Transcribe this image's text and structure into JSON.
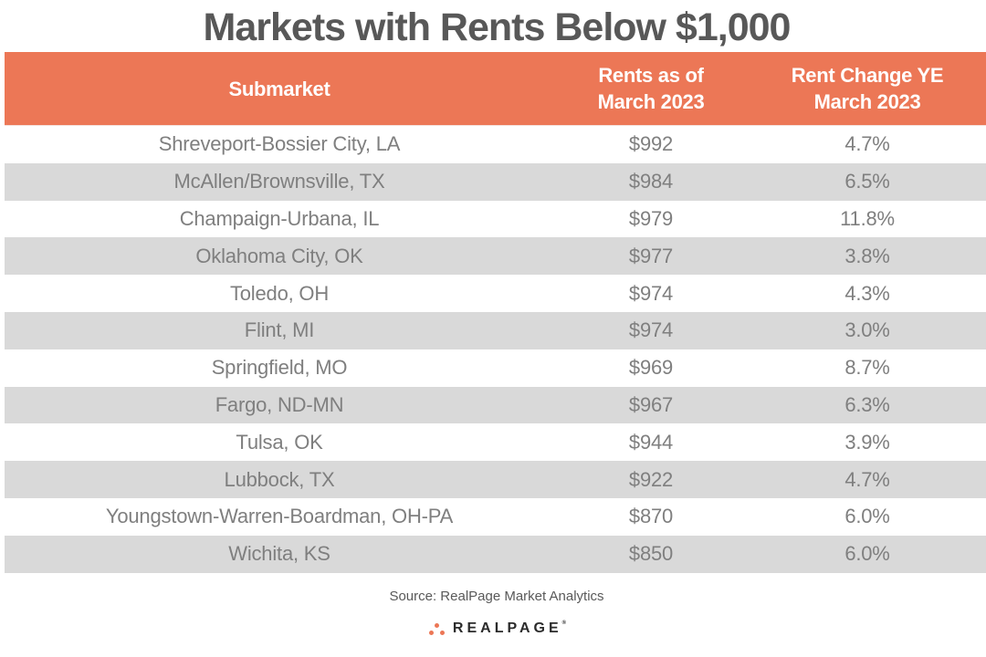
{
  "title": "Markets with Rents Below $1,000",
  "table": {
    "headers": {
      "submarket": "Submarket",
      "rent_line1": "Rents as of",
      "rent_line2": "March 2023",
      "change_line1": "Rent Change YE",
      "change_line2": "March 2023"
    },
    "rows": [
      {
        "submarket": "Shreveport-Bossier City, LA",
        "rent": "$992",
        "change": "4.7%"
      },
      {
        "submarket": "McAllen/Brownsville, TX",
        "rent": "$984",
        "change": "6.5%"
      },
      {
        "submarket": "Champaign-Urbana, IL",
        "rent": "$979",
        "change": "11.8%"
      },
      {
        "submarket": "Oklahoma City, OK",
        "rent": "$977",
        "change": "3.8%"
      },
      {
        "submarket": "Toledo, OH",
        "rent": "$974",
        "change": "4.3%"
      },
      {
        "submarket": "Flint, MI",
        "rent": "$974",
        "change": "3.0%"
      },
      {
        "submarket": "Springfield, MO",
        "rent": "$969",
        "change": "8.7%"
      },
      {
        "submarket": "Fargo, ND-MN",
        "rent": "$967",
        "change": "6.3%"
      },
      {
        "submarket": "Tulsa, OK",
        "rent": "$944",
        "change": "3.9%"
      },
      {
        "submarket": "Lubbock, TX",
        "rent": "$922",
        "change": "4.7%"
      },
      {
        "submarket": "Youngstown-Warren-Boardman, OH-PA",
        "rent": "$870",
        "change": "6.0%"
      },
      {
        "submarket": "Wichita, KS",
        "rent": "$850",
        "change": "6.0%"
      }
    ]
  },
  "source": "Source: RealPage Market Analytics",
  "logo": {
    "text": "REALPAGE",
    "trademark": "®",
    "icon": "three-dots-icon"
  },
  "colors": {
    "header_bg": "#ec7756",
    "alt_row_bg": "#d9d9d9",
    "title": "#585858",
    "cell_text": "#7f7f7f"
  }
}
